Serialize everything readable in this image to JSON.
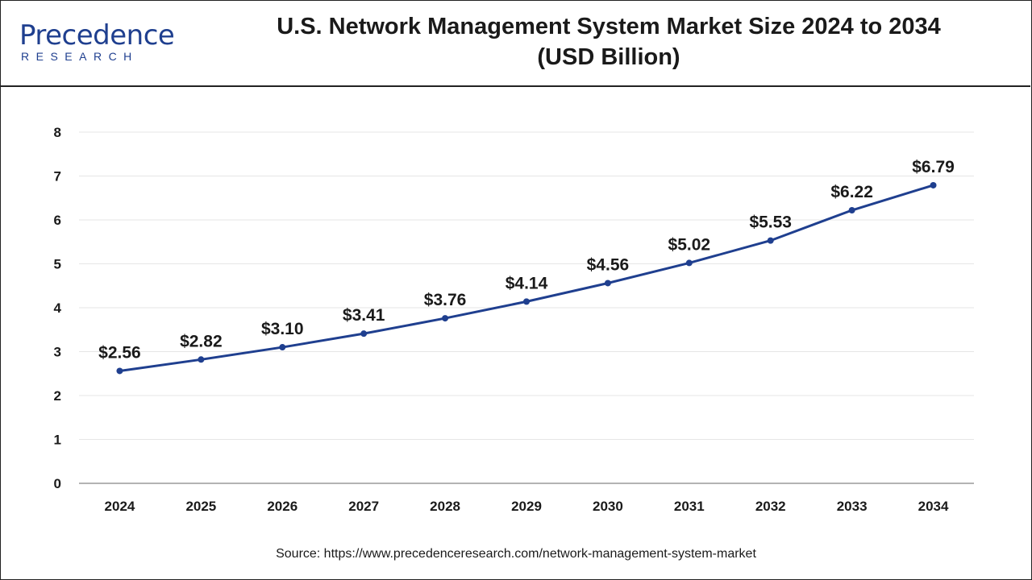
{
  "brand": {
    "logo_main": "Precedence",
    "logo_sub": "RESEARCH",
    "brand_color": "#1f3f8f"
  },
  "header": {
    "title_line1": "U.S. Network Management System Market Size 2024 to 2034",
    "title_line2": "(USD Billion)"
  },
  "footer": {
    "source": "Source: https://www.precedenceresearch.com/network-management-system-market"
  },
  "chart_data": {
    "type": "line",
    "title": "U.S. Network Management System Market Size 2024 to 2034 (USD Billion)",
    "xlabel": "",
    "ylabel": "",
    "categories": [
      "2024",
      "2025",
      "2026",
      "2027",
      "2028",
      "2029",
      "2030",
      "2031",
      "2032",
      "2033",
      "2034"
    ],
    "series": [
      {
        "values": [
          2.56,
          2.82,
          3.1,
          3.41,
          3.76,
          4.14,
          4.56,
          5.02,
          5.53,
          6.22,
          6.79
        ],
        "labels": [
          "$2.56",
          "$2.82",
          "$3.10",
          "$3.41",
          "$3.76",
          "$4.14",
          "$4.56",
          "$5.02",
          "$5.53",
          "$6.22",
          "$6.79"
        ],
        "color": "#1f3f8f"
      }
    ],
    "ylim": [
      0,
      8
    ],
    "yticks": [
      "0",
      "1",
      "2",
      "3",
      "4",
      "5",
      "6",
      "7",
      "8"
    ],
    "grid": true,
    "legend": "none"
  }
}
